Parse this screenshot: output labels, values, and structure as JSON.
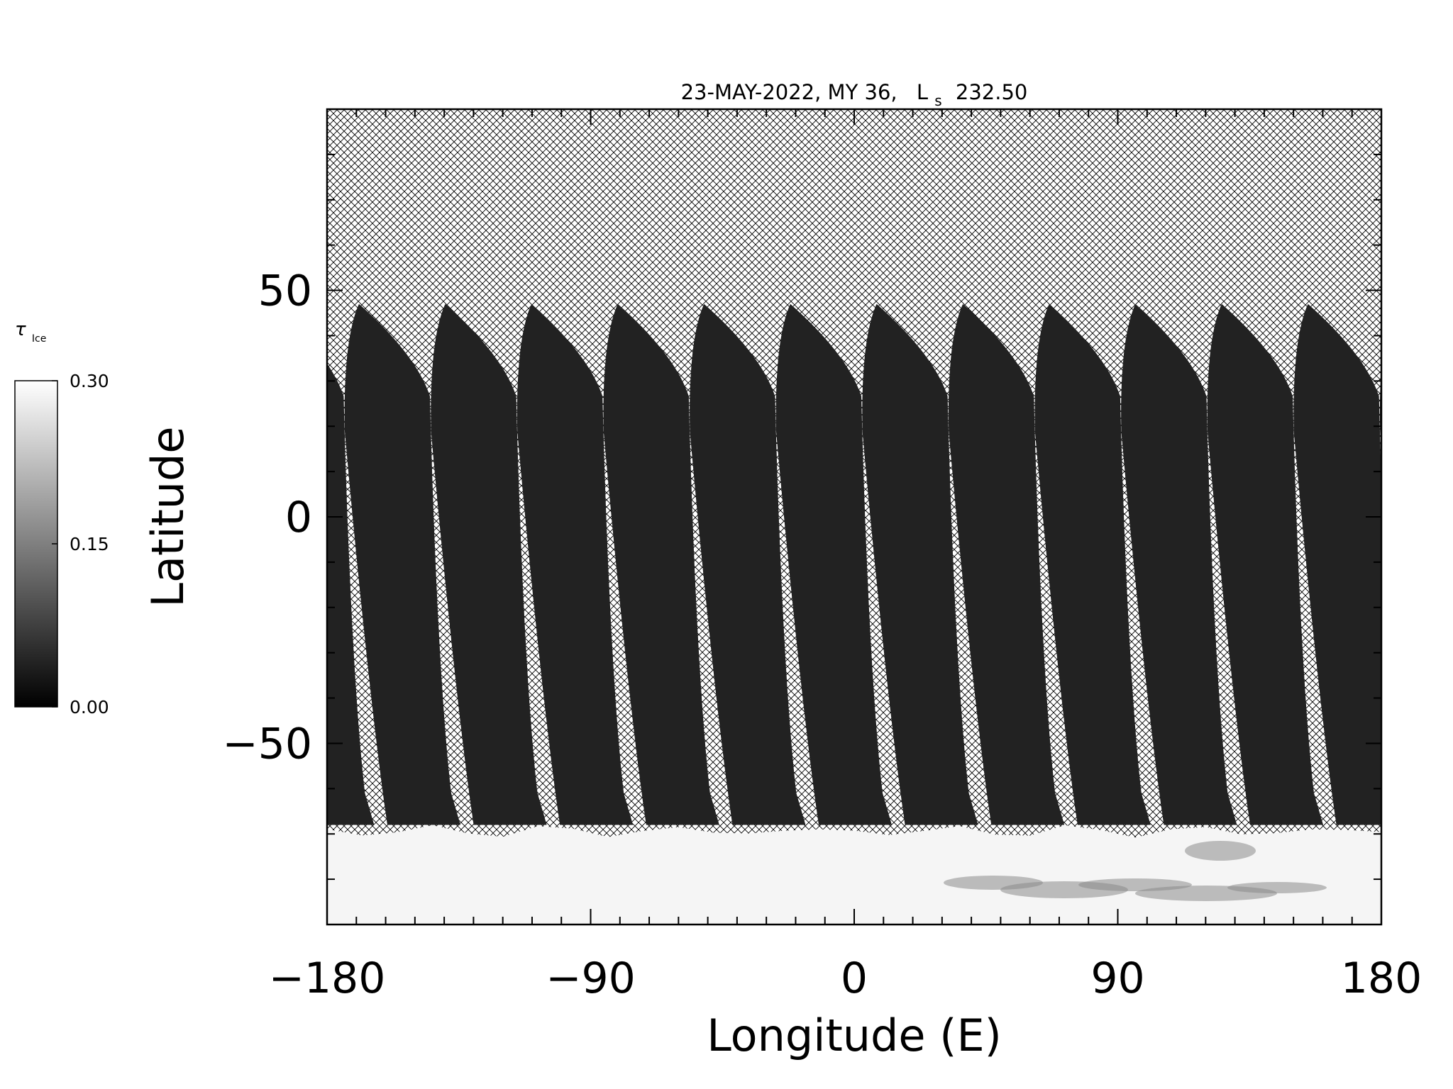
{
  "chart_data": {
    "type": "heatmap",
    "title": {
      "date": "23-MAY-2022, MY 36,",
      "ls_symbol": "L",
      "ls_subscript": "s",
      "ls_value": "232.50"
    },
    "xlabel": "Longitude (E)",
    "ylabel": "Latitude",
    "xlim": [
      -180,
      180
    ],
    "ylim": [
      -90,
      90
    ],
    "x_ticks": [
      {
        "value": -180,
        "label": "−180"
      },
      {
        "value": -90,
        "label": "−90"
      },
      {
        "value": 0,
        "label": "0"
      },
      {
        "value": 90,
        "label": "90"
      },
      {
        "value": 180,
        "label": "180"
      }
    ],
    "y_ticks": [
      {
        "value": 50,
        "label": "50"
      },
      {
        "value": 0,
        "label": "0"
      },
      {
        "value": -50,
        "label": "−50"
      }
    ],
    "colorbar": {
      "symbol": "τ",
      "subscript": "Ice",
      "min": 0.0,
      "max": 0.3,
      "ticks": [
        {
          "value": 0.3,
          "label": "0.30"
        },
        {
          "value": 0.15,
          "label": "0.15"
        },
        {
          "value": 0.0,
          "label": "0.00"
        }
      ],
      "colormap": "grayscale",
      "low_color": "#000000",
      "high_color": "#ffffff"
    },
    "no_data_pattern": "crosshatch",
    "swaths": {
      "count": 13,
      "top_latitude": 47,
      "bottom_latitude": -68,
      "background_tau": 0.02
    },
    "south_polar_hood": {
      "lat_top": -68,
      "lat_bottom": -90,
      "tau": 0.3
    }
  }
}
